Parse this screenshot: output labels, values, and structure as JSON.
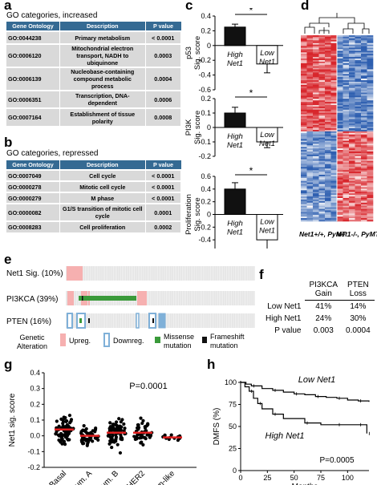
{
  "panels": {
    "a": "a",
    "b": "b",
    "c": "c",
    "d": "d",
    "e": "e",
    "f": "f",
    "g": "g",
    "h": "h"
  },
  "panel_a": {
    "title": "GO categories, increased",
    "headers": [
      "Gene Ontology",
      "Description",
      "P value"
    ],
    "rows": [
      [
        "GO:0044238",
        "Primary metabolism",
        "< 0.0001"
      ],
      [
        "GO:0006120",
        "Mitochondrial electron transport, NADH to ubiquinone",
        "0.0003"
      ],
      [
        "GO:0006139",
        "Nucleobase-containing compound metabolic process",
        "0.0004"
      ],
      [
        "GO:0006351",
        "Transcription, DNA-dependent",
        "0.0006"
      ],
      [
        "GO:0007164",
        "Establishment of tissue polarity",
        "0.0008"
      ]
    ]
  },
  "panel_b": {
    "title": "GO categories, repressed",
    "headers": [
      "Gene Ontology",
      "Description",
      "P value"
    ],
    "rows": [
      [
        "GO:0007049",
        "Cell cycle",
        "< 0.0001"
      ],
      [
        "GO:0000278",
        "Mitotic cell cycle",
        "< 0.0001"
      ],
      [
        "GO:0000279",
        "M phase",
        "< 0.0001"
      ],
      [
        "GO:0000082",
        "G1/S transition of mitotic cell cycle",
        "0.0001"
      ],
      [
        "GO:0008283",
        "Cell proliferation",
        "0.0002"
      ]
    ]
  },
  "chart_data": [
    {
      "type": "bar",
      "panel": "c",
      "ylabel_line1": "p53",
      "ylabel_line2": "Sig. score",
      "categories": [
        "High Net1",
        "Low Net1"
      ],
      "cat_line1": [
        "High",
        "Low"
      ],
      "cat_line2": [
        "Net1",
        "Net1"
      ],
      "values": [
        0.25,
        -0.25
      ],
      "errors": [
        0.04,
        0.12
      ],
      "ylim": [
        -0.6,
        0.4
      ],
      "yticks": [
        "0.4",
        "0.2",
        "0",
        "-0.2",
        "-0.4",
        "-0.6"
      ],
      "significance": "*"
    },
    {
      "type": "bar",
      "panel": "c",
      "ylabel_line1": "PI3K",
      "ylabel_line2": "Sig. score",
      "categories": [
        "High Net1",
        "Low Net1"
      ],
      "cat_line1": [
        "High",
        "Low"
      ],
      "cat_line2": [
        "Net1",
        "Net1"
      ],
      "values": [
        0.1,
        -0.1
      ],
      "errors": [
        0.04,
        0.04
      ],
      "ylim": [
        -0.2,
        0.2
      ],
      "yticks": [
        "0.2",
        "0.1",
        "0",
        "-0.1",
        "-0.2"
      ],
      "significance": "*"
    },
    {
      "type": "bar",
      "panel": "c",
      "ylabel_line1": "Proliferation",
      "ylabel_line2": "Sig. score",
      "categories": [
        "High Net1",
        "Low Net1"
      ],
      "cat_line1": [
        "High",
        "Low"
      ],
      "cat_line2": [
        "Net1",
        "Net1"
      ],
      "values": [
        0.4,
        -0.4
      ],
      "errors": [
        0.1,
        0.2
      ],
      "ylim": [
        -0.6,
        0.6
      ],
      "yticks": [
        "0.6",
        "0.4",
        "0.2",
        "0",
        "-0.2",
        "-0.4",
        "-0.6"
      ],
      "significance": "*"
    },
    {
      "type": "heatmap",
      "panel": "d",
      "columns": [
        "Net1+/+, PyMT",
        "Net1-/-, PyMT"
      ]
    },
    {
      "type": "table",
      "panel": "e",
      "rows": [
        "Net1 Sig. (10%)",
        "PI3KCA (39%)",
        "PTEN (16%)"
      ],
      "legend_title": "Genetic Alteration",
      "legend": [
        "Upreg.",
        "Downreg.",
        "Missense mutation",
        "Frameshift mutation"
      ],
      "legend_colors": [
        "#f6b0b0",
        "#7fb0d8",
        "#3a9a3a",
        "#111111"
      ]
    },
    {
      "type": "table",
      "panel": "f",
      "headers": [
        "PI3KCA Gain",
        "PTEN Loss"
      ],
      "rows": [
        [
          "Low Net1",
          "41%",
          "14%"
        ],
        [
          "High Net1",
          "24%",
          "30%"
        ],
        [
          "P value",
          "0.003",
          "0.0004"
        ]
      ]
    },
    {
      "type": "scatter",
      "panel": "g",
      "ylabel": "Net1 sig. score",
      "categories": [
        "Basal",
        "Lum. A",
        "Lum. B",
        "HER2",
        "Norm-like"
      ],
      "medians": [
        0.04,
        0.0,
        0.02,
        0.02,
        -0.01
      ],
      "ylim": [
        -0.2,
        0.4
      ],
      "yticks": [
        "0.4",
        "0.3",
        "0.2",
        "0.1",
        "0.0",
        "-0.1",
        "-0.2"
      ],
      "annotation": "P=0.0001"
    },
    {
      "type": "line",
      "panel": "h",
      "xlabel": "Months",
      "ylabel": "DMFS (%)",
      "xlim": [
        0,
        120
      ],
      "ylim": [
        0,
        100
      ],
      "xticks": [
        "0",
        "25",
        "50",
        "75",
        "100"
      ],
      "yticks": [
        "100",
        "75",
        "50",
        "25",
        "0"
      ],
      "series": [
        {
          "name": "Low Net1",
          "x": [
            0,
            5,
            10,
            20,
            30,
            40,
            50,
            60,
            70,
            80,
            90,
            100,
            110,
            120
          ],
          "y": [
            100,
            98,
            96,
            93,
            91,
            89,
            87,
            86,
            84,
            83,
            82,
            80,
            79,
            78
          ]
        },
        {
          "name": "High Net1",
          "x": [
            0,
            4,
            8,
            12,
            16,
            20,
            30,
            40,
            60,
            75,
            90,
            100,
            110,
            115,
            118
          ],
          "y": [
            100,
            95,
            90,
            82,
            76,
            70,
            64,
            59,
            54,
            52,
            52,
            52,
            52,
            52,
            42
          ]
        }
      ],
      "annotation": "P=0.0005"
    }
  ]
}
